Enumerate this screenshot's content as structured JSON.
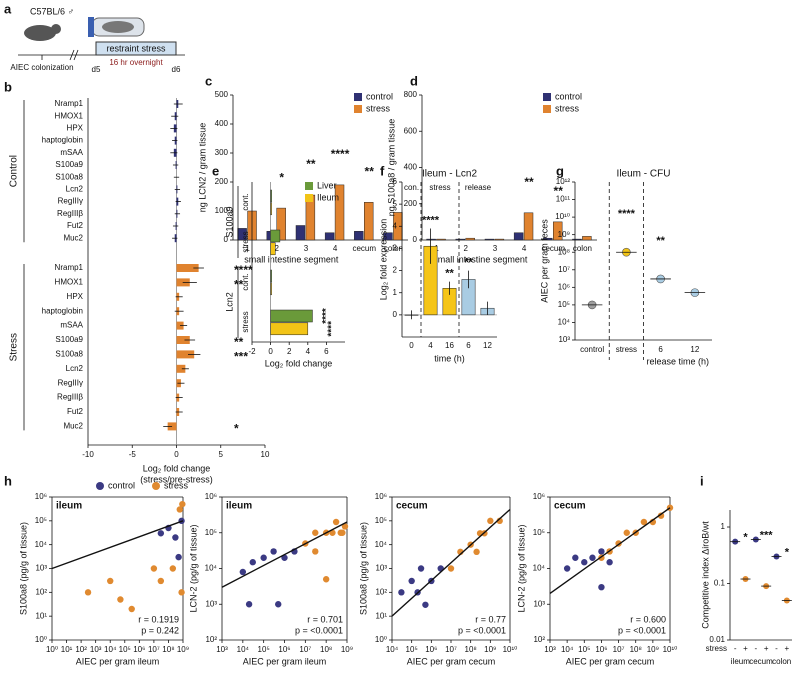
{
  "schematic": {
    "panel_label": "a",
    "strain": "C57BL/6 ♂",
    "colonization": "AIEC colonization",
    "day_start": "d5",
    "day_end": "d6",
    "stress": "restraint stress",
    "duration": "16 hr overnight"
  },
  "chart_data": [
    {
      "panel_label": "b",
      "type": "hbar",
      "xlim": [
        -10,
        10
      ],
      "xticks": [
        -10,
        -5,
        0,
        5,
        10
      ],
      "xlabel": "Log₂ fold change",
      "xlabel2": "(stress/pre-stress)",
      "groups": [
        {
          "name": "Control",
          "color": "#2f3173",
          "categories": [
            "Nramp1",
            "HMOX1",
            "HPX",
            "haptoglobin",
            "mSAA",
            "S100a9",
            "S100a8",
            "Lcn2",
            "RegIIIγ",
            "RegIIIβ",
            "Fut2",
            "Muc2"
          ],
          "values": [
            0.2,
            -0.2,
            -0.3,
            -0.2,
            -0.3,
            -0.1,
            0,
            0.1,
            0.2,
            0.1,
            -0.1,
            -0.2
          ],
          "errors": [
            0.5,
            0.4,
            0.4,
            0.3,
            0.4,
            0.3,
            0.3,
            0.3,
            0.3,
            0.3,
            0.3,
            0.3
          ],
          "significance": [
            null,
            null,
            null,
            null,
            null,
            null,
            null,
            null,
            null,
            null,
            null,
            null
          ]
        },
        {
          "name": "Stress",
          "color": "#e0832f",
          "categories": [
            "Nramp1",
            "HMOX1",
            "HPX",
            "haptoglobin",
            "mSAA",
            "S100a9",
            "S100a8",
            "Lcn2",
            "RegIIIγ",
            "RegIIIβ",
            "Fut2",
            "Muc2"
          ],
          "values": [
            2.5,
            1.5,
            0.3,
            0.3,
            0.8,
            1.5,
            2.0,
            1.0,
            0.5,
            0.3,
            0.3,
            -1.0
          ],
          "errors": [
            0.6,
            0.8,
            0.4,
            0.5,
            0.4,
            0.6,
            0.7,
            0.4,
            0.4,
            0.4,
            0.4,
            0.5
          ],
          "significance": [
            "****",
            "**",
            null,
            null,
            null,
            "**",
            "***",
            null,
            null,
            null,
            null,
            "*"
          ]
        }
      ]
    },
    {
      "panel_label": "c",
      "type": "grouped_bar",
      "categories": [
        "1",
        "2",
        "3",
        "4",
        "cecum",
        "colon"
      ],
      "xlabel": "small intestine segment",
      "ylabel": "ng LCN2 / gram tissue",
      "ylim": [
        0,
        500
      ],
      "yticks": [
        0,
        100,
        200,
        300,
        400,
        500
      ],
      "series": [
        {
          "name": "control",
          "color": "#2f3173",
          "values": [
            40,
            30,
            50,
            25,
            30,
            25
          ]
        },
        {
          "name": "stress",
          "color": "#e0832f",
          "values": [
            100,
            110,
            155,
            190,
            130,
            95
          ]
        }
      ],
      "significance": [
        null,
        "*",
        "**",
        "****",
        "**",
        null
      ]
    },
    {
      "panel_label": "d",
      "type": "grouped_bar",
      "categories": [
        "1",
        "2",
        "3",
        "4",
        "cecum",
        "colon"
      ],
      "xlabel": "small intestine segment",
      "ylabel": "ng S100a8 / gram tissue",
      "ylim": [
        0,
        800
      ],
      "yticks": [
        0,
        200,
        400,
        600,
        800
      ],
      "series": [
        {
          "name": "control",
          "color": "#2f3173",
          "values": [
            5,
            5,
            5,
            40,
            10,
            5
          ]
        },
        {
          "name": "stress",
          "color": "#e0832f",
          "values": [
            5,
            10,
            5,
            150,
            100,
            20
          ]
        }
      ],
      "significance": [
        null,
        null,
        null,
        "**",
        "**",
        null
      ]
    },
    {
      "panel_label": "e",
      "type": "hgrouped_bar",
      "groups": [
        "S100a9",
        "Lcn2"
      ],
      "rows": [
        "cont.",
        "stress",
        "cont.",
        "stress"
      ],
      "xlim": [
        -2,
        8
      ],
      "xticks": [
        -2,
        0,
        2,
        4,
        6
      ],
      "xlabel": "Log₂ fold change",
      "series": [
        {
          "name": "Liver",
          "color": "#6a9a3a",
          "values": [
            0,
            1,
            0,
            4.5
          ],
          "significance": [
            null,
            null,
            null,
            "****"
          ]
        },
        {
          "name": "Ileum",
          "color": "#f2c417",
          "values": [
            0,
            0.5,
            0,
            4
          ],
          "significance": [
            null,
            null,
            null,
            "****"
          ]
        }
      ]
    },
    {
      "panel_label": "f",
      "type": "bar",
      "title": "Ileum - Lcn2",
      "categories": [
        "0",
        "4",
        "16",
        "6",
        "12"
      ],
      "values": [
        0,
        3.1,
        1.2,
        1.6,
        0.3
      ],
      "errors": [
        0.2,
        0.8,
        0.3,
        0.4,
        0.3
      ],
      "colors": [
        "#bdbdbd",
        "#f5c518",
        "#f5c518",
        "#a9cce3",
        "#a9cce3"
      ],
      "sections": [
        "con.",
        "stress",
        "release"
      ],
      "significance": [
        null,
        "****",
        "**",
        "**",
        null
      ],
      "ylim": [
        -1,
        6
      ],
      "yticks": [
        0,
        1,
        2,
        3,
        4,
        5,
        6
      ],
      "ylabel": "Log₂ fold expression",
      "xlabel": "time (h)"
    },
    {
      "panel_label": "g",
      "type": "dot",
      "log_y": true,
      "title": "Ileum - CFU",
      "categories": [
        "control",
        "stress",
        "6",
        "12"
      ],
      "values": [
        100000,
        100000000,
        3000000,
        500000
      ],
      "colors": [
        "#9e9e9e",
        "#f2c417",
        "#a9cce3",
        "#a9cce3"
      ],
      "significance": [
        null,
        "****",
        "**",
        null
      ],
      "ylim": [
        1000,
        1000000000000
      ],
      "yticks": [
        {
          "value": 1000,
          "label": "10³"
        },
        {
          "value": 10000,
          "label": "10⁴"
        },
        {
          "value": 100000,
          "label": "10⁵"
        },
        {
          "value": 1000000,
          "label": "10⁶"
        },
        {
          "value": 10000000,
          "label": "10⁷"
        },
        {
          "value": 100000000,
          "label": "10⁸"
        },
        {
          "value": 1000000000,
          "label": "10⁹"
        },
        {
          "value": 10000000000,
          "label": "10¹⁰"
        },
        {
          "value": 100000000000,
          "label": "10¹¹"
        },
        {
          "value": 1000000000000,
          "label": "10¹²"
        }
      ],
      "ylabel": "AIEC per gram feces",
      "xlabel": "release time (h)"
    },
    {
      "panel_label": "h",
      "type": "scatter",
      "log_x": true,
      "log_y": true,
      "title": "ileum",
      "xlabel": "AIEC per gram ileum",
      "ylabel": "S100a8 (pg/g of tissue)",
      "r": "r = 0.1919",
      "p": "p = 0.242",
      "xlim": [
        1,
        1000000000
      ],
      "xticks": [
        {
          "value": 1,
          "label": "10⁰"
        },
        {
          "value": 10,
          "label": "10¹"
        },
        {
          "value": 100,
          "label": "10²"
        },
        {
          "value": 1000,
          "label": "10³"
        },
        {
          "value": 10000,
          "label": "10⁴"
        },
        {
          "value": 100000,
          "label": "10⁵"
        },
        {
          "value": 1000000,
          "label": "10⁶"
        },
        {
          "value": 10000000,
          "label": "10⁷"
        },
        {
          "value": 100000000,
          "label": "10⁸"
        },
        {
          "value": 1000000000,
          "label": "10⁹"
        }
      ],
      "ylim": [
        1,
        1000000
      ],
      "yticks": [
        {
          "value": 1,
          "label": "10⁰"
        },
        {
          "value": 10,
          "label": "10¹"
        },
        {
          "value": 100,
          "label": "10²"
        },
        {
          "value": 1000,
          "label": "10³"
        },
        {
          "value": 10000,
          "label": "10⁴"
        },
        {
          "value": 100000,
          "label": "10⁵"
        },
        {
          "value": 1000000,
          "label": "10⁶"
        }
      ],
      "series": [
        {
          "name": "control",
          "color": "#3b3a83",
          "x": [
            30000000,
            100000000,
            300000000,
            800000000,
            500000000
          ],
          "y": [
            30000,
            50000,
            20000,
            100000,
            3000
          ]
        },
        {
          "name": "stress",
          "color": "#e08a30",
          "x": [
            300,
            10000,
            50000,
            300000,
            10000000,
            30000000,
            200000000,
            600000000,
            900000000,
            800000000
          ],
          "y": [
            100,
            300,
            50,
            20,
            1000,
            300,
            1000,
            300000,
            500000,
            100
          ]
        }
      ],
      "fit": {
        "x": [
          1,
          1000000000
        ],
        "y": [
          1000,
          100000
        ]
      }
    },
    {
      "type": "scatter",
      "log_x": true,
      "log_y": true,
      "title": "ileum",
      "xlabel": "AIEC per gram ileum",
      "ylabel": "LCN-2 (pg/g of tissue)",
      "r": "r = 0.701",
      "p": "p = <0.0001",
      "xlim": [
        1000,
        1000000000
      ],
      "xticks": [
        {
          "value": 1000,
          "label": "10³"
        },
        {
          "value": 10000,
          "label": "10⁴"
        },
        {
          "value": 100000,
          "label": "10⁵"
        },
        {
          "value": 1000000,
          "label": "10⁶"
        },
        {
          "value": 10000000,
          "label": "10⁷"
        },
        {
          "value": 100000000,
          "label": "10⁸"
        },
        {
          "value": 1000000000,
          "label": "10⁹"
        }
      ],
      "ylim": [
        100,
        1000000
      ],
      "yticks": [
        {
          "value": 100,
          "label": "10²"
        },
        {
          "value": 1000,
          "label": "10³"
        },
        {
          "value": 10000,
          "label": "10⁴"
        },
        {
          "value": 100000,
          "label": "10⁵"
        },
        {
          "value": 1000000,
          "label": "10⁶"
        }
      ],
      "series": [
        {
          "name": "control",
          "color": "#3b3a83",
          "x": [
            10000,
            30000,
            100000,
            300000,
            1000000,
            20000,
            500000,
            3000000
          ],
          "y": [
            8000,
            15000,
            20000,
            30000,
            20000,
            1000,
            1000,
            30000
          ]
        },
        {
          "name": "stress",
          "color": "#e08a30",
          "x": [
            10000000,
            30000000,
            100000000,
            30000000,
            200000000,
            300000000,
            500000000,
            100000000,
            600000000,
            800000000
          ],
          "y": [
            50000,
            30000,
            100000,
            100000,
            100000,
            200000,
            100000,
            5000,
            100000,
            150000
          ]
        }
      ],
      "fit": {
        "x": [
          1000,
          1000000000
        ],
        "y": [
          3000,
          200000
        ]
      }
    },
    {
      "type": "scatter",
      "log_x": true,
      "log_y": true,
      "title": "cecum",
      "xlabel": "AIEC per gram cecum",
      "ylabel": "S100a8 (pg/g of tissue)",
      "r": "r = 0.77",
      "p": "p = <0.0001",
      "xlim": [
        10000,
        10000000000
      ],
      "xticks": [
        {
          "value": 10000,
          "label": "10⁴"
        },
        {
          "value": 100000,
          "label": "10⁵"
        },
        {
          "value": 1000000,
          "label": "10⁶"
        },
        {
          "value": 10000000,
          "label": "10⁷"
        },
        {
          "value": 100000000,
          "label": "10⁸"
        },
        {
          "value": 1000000000,
          "label": "10⁹"
        },
        {
          "value": 10000000000,
          "label": "10¹⁰"
        }
      ],
      "ylim": [
        1,
        1000000
      ],
      "yticks": [
        {
          "value": 1,
          "label": "10⁰"
        },
        {
          "value": 10,
          "label": "10¹"
        },
        {
          "value": 100,
          "label": "10²"
        },
        {
          "value": 1000,
          "label": "10³"
        },
        {
          "value": 10000,
          "label": "10⁴"
        },
        {
          "value": 100000,
          "label": "10⁵"
        },
        {
          "value": 1000000,
          "label": "10⁶"
        }
      ],
      "series": [
        {
          "name": "control",
          "color": "#3b3a83",
          "x": [
            30000,
            100000,
            300000,
            1000000,
            3000000,
            500000,
            200000
          ],
          "y": [
            100,
            300,
            1000,
            300,
            1000,
            30,
            100
          ]
        },
        {
          "name": "stress",
          "color": "#e08a30",
          "x": [
            10000000,
            30000000,
            100000000,
            300000000,
            1000000000,
            3000000000,
            500000000,
            200000000
          ],
          "y": [
            1000,
            5000,
            10000,
            30000,
            100000,
            100000,
            30000,
            5000
          ]
        }
      ],
      "fit": {
        "x": [
          10000,
          10000000000
        ],
        "y": [
          10,
          300000
        ]
      }
    },
    {
      "type": "scatter",
      "log_x": true,
      "log_y": true,
      "title": "cecum",
      "xlabel": "AIEC per gram cecum",
      "ylabel": "LCN-2 (pg/g of tissue)",
      "r": "r = 0.600",
      "p": "p = <0.0001",
      "xlim": [
        1000,
        10000000000
      ],
      "xticks": [
        {
          "value": 1000,
          "label": "10³"
        },
        {
          "value": 10000,
          "label": "10⁴"
        },
        {
          "value": 100000,
          "label": "10⁵"
        },
        {
          "value": 1000000,
          "label": "10⁶"
        },
        {
          "value": 10000000,
          "label": "10⁷"
        },
        {
          "value": 100000000,
          "label": "10⁸"
        },
        {
          "value": 1000000000,
          "label": "10⁹"
        },
        {
          "value": 10000000000,
          "label": "10¹⁰"
        }
      ],
      "ylim": [
        100,
        1000000
      ],
      "yticks": [
        {
          "value": 100,
          "label": "10²"
        },
        {
          "value": 1000,
          "label": "10³"
        },
        {
          "value": 10000,
          "label": "10⁴"
        },
        {
          "value": 100000,
          "label": "10⁵"
        },
        {
          "value": 1000000,
          "label": "10⁶"
        }
      ],
      "series": [
        {
          "name": "control",
          "color": "#3b3a83",
          "x": [
            10000,
            30000,
            100000,
            300000,
            1000000,
            3000000,
            1000000
          ],
          "y": [
            10000,
            20000,
            15000,
            20000,
            30000,
            15000,
            3000
          ]
        },
        {
          "name": "stress",
          "color": "#e08a30",
          "x": [
            1000000,
            3000000,
            10000000,
            30000000,
            100000000,
            300000000,
            1000000000,
            3000000000,
            10000000000
          ],
          "y": [
            20000,
            30000,
            50000,
            100000,
            100000,
            200000,
            200000,
            300000,
            500000
          ]
        }
      ],
      "fit": {
        "x": [
          1000,
          10000000000
        ],
        "y": [
          2000,
          500000
        ]
      }
    },
    {
      "panel_label": "i",
      "type": "dot_pair",
      "log_y": true,
      "categories": [
        "ileum",
        "cecum",
        "colon"
      ],
      "row_label": "stress",
      "ylabel": "Competitive index ΔiroB/wt",
      "ylim": [
        0.01,
        2
      ],
      "yticks": [
        {
          "value": 0.01,
          "label": "0.01"
        },
        {
          "value": 0.1,
          "label": "0.1"
        },
        1
      ],
      "series": [
        {
          "name": "-",
          "color": "#3b3a83",
          "values": [
            0.55,
            0.6,
            0.3
          ]
        },
        {
          "name": "+",
          "color": "#e08a30",
          "values": [
            0.12,
            0.09,
            0.05
          ],
          "significance": [
            "*",
            "***",
            "*"
          ]
        }
      ]
    }
  ]
}
